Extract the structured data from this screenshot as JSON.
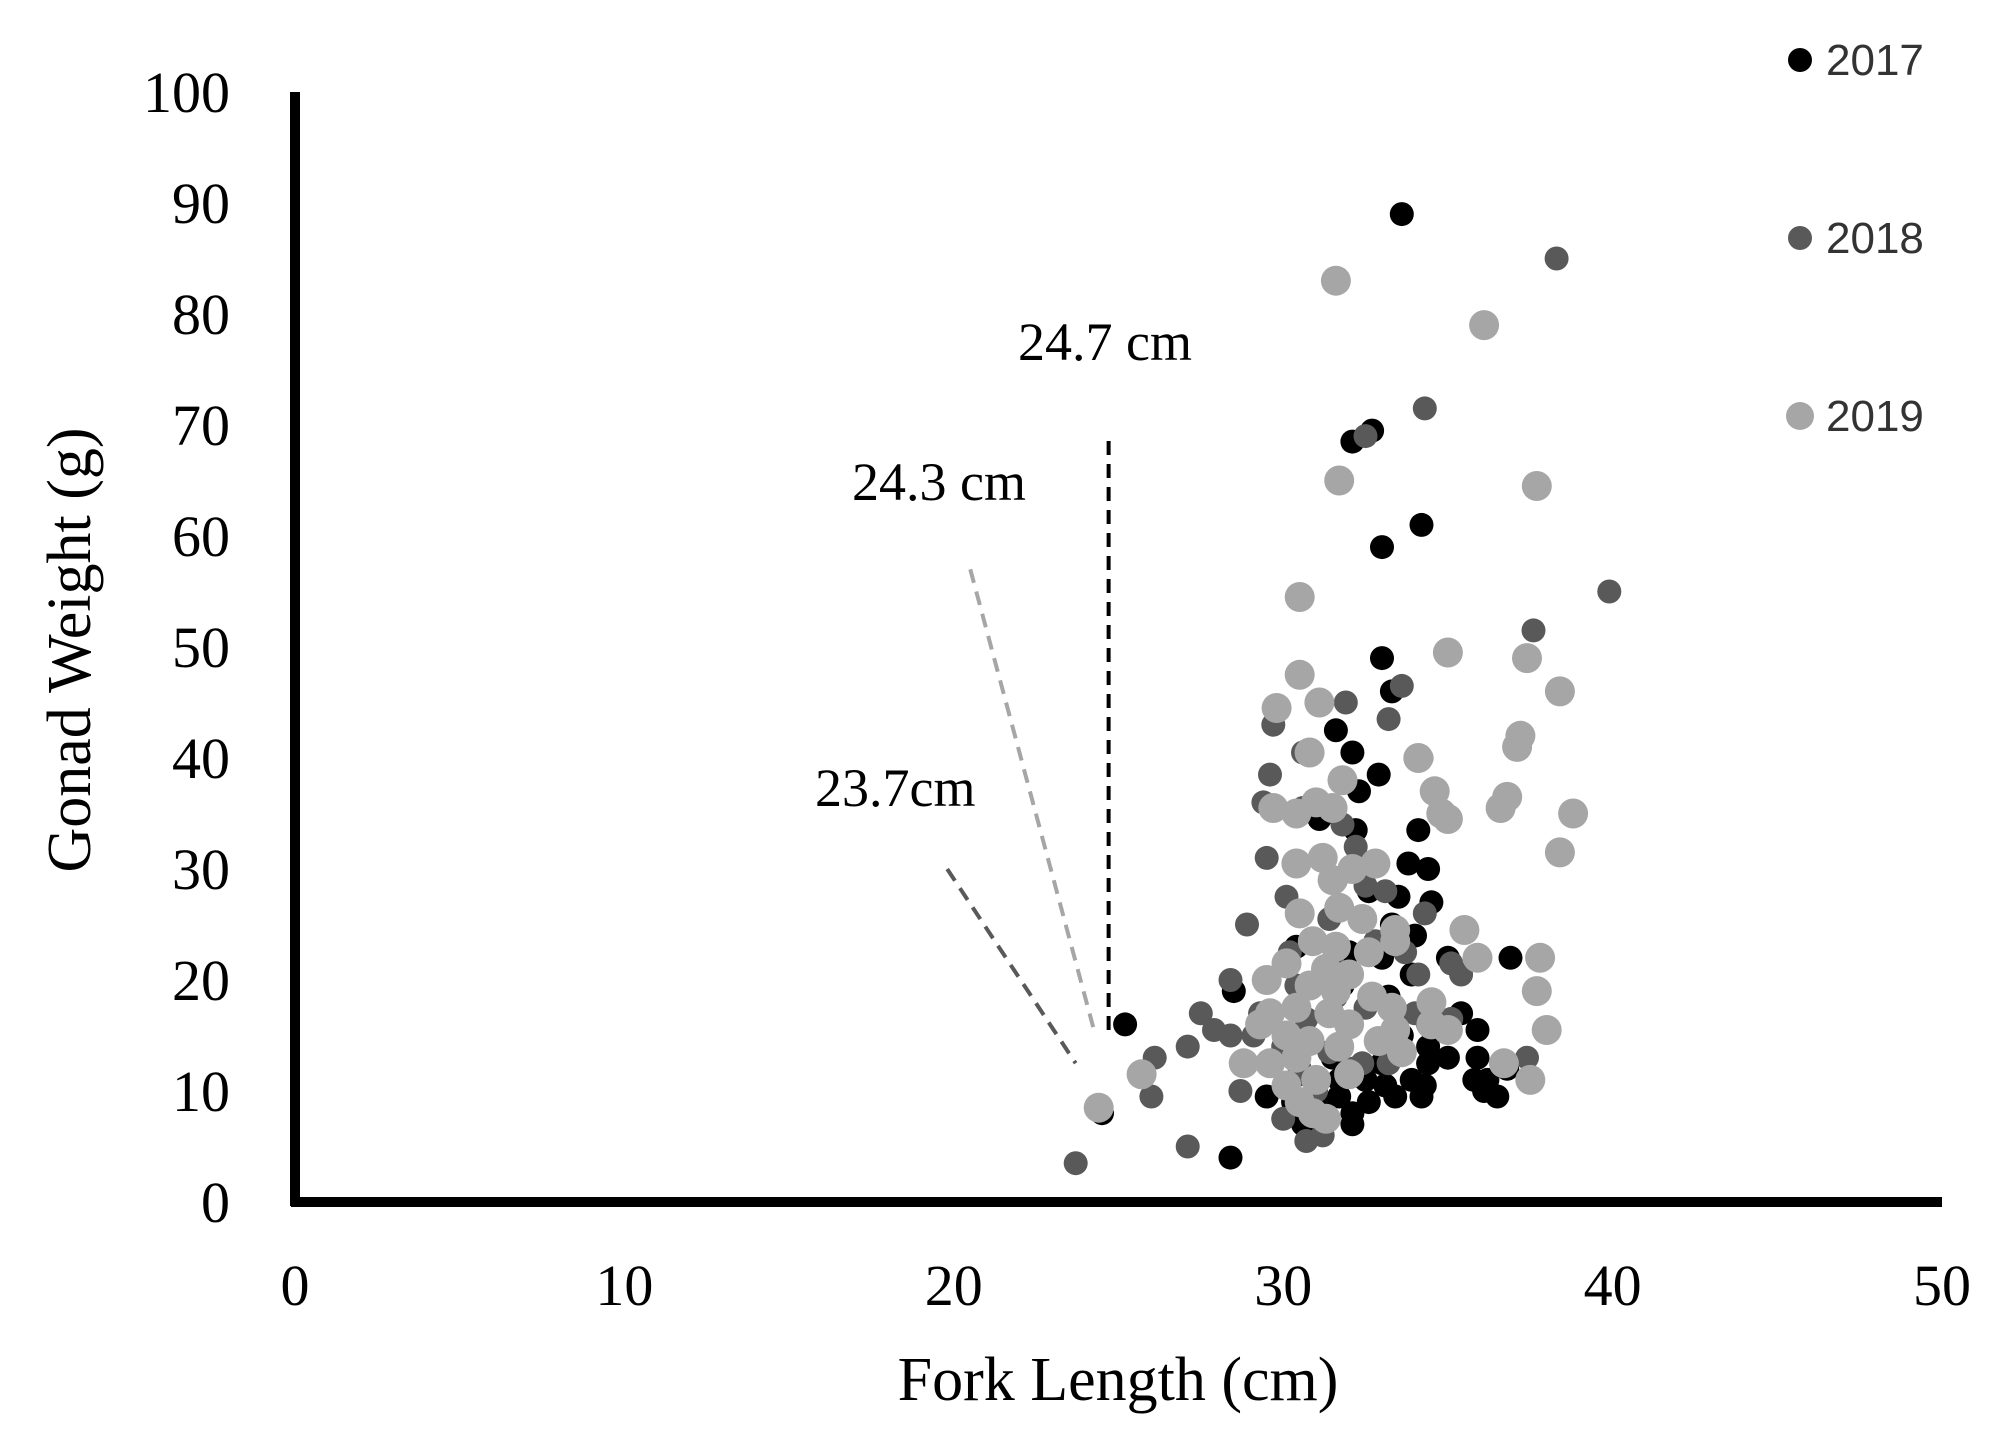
{
  "chart_data": {
    "type": "scatter",
    "xlabel": "Fork Length (cm)",
    "ylabel": "Gonad Weight (g)",
    "xlim": [
      0,
      50
    ],
    "ylim": [
      0,
      100
    ],
    "x_ticks": [
      0,
      10,
      20,
      30,
      40,
      50
    ],
    "y_ticks": [
      0,
      10,
      20,
      30,
      40,
      50,
      60,
      70,
      80,
      90,
      100
    ],
    "grid": false,
    "legend_position": "top-right",
    "colors": {
      "axis": "#000000",
      "2017": "#000000",
      "2018": "#595959",
      "2019": "#a6a6a6"
    },
    "annotations": [
      {
        "text": "24.7 cm",
        "line": {
          "x": [
            24.7,
            24.7
          ],
          "y": [
            15.5,
            69
          ],
          "color": "#000000"
        }
      },
      {
        "text": "24.3 cm",
        "line": {
          "x": [
            20.5,
            24.3
          ],
          "y": [
            57,
            15
          ],
          "color": "#a6a6a6"
        }
      },
      {
        "text": "23.7cm",
        "line": {
          "x": [
            19.8,
            23.7
          ],
          "y": [
            30,
            12.5
          ],
          "color": "#595959"
        }
      }
    ],
    "series": [
      {
        "name": "2017",
        "points": [
          [
            33.6,
            89
          ],
          [
            32.7,
            69.5
          ],
          [
            32.1,
            68.5
          ],
          [
            34.2,
            61
          ],
          [
            33.0,
            59
          ],
          [
            33.0,
            49
          ],
          [
            33.3,
            46
          ],
          [
            31.6,
            42.5
          ],
          [
            32.1,
            40.5
          ],
          [
            32.3,
            37
          ],
          [
            32.9,
            38.5
          ],
          [
            31.1,
            34.5
          ],
          [
            32.2,
            33.5
          ],
          [
            34.1,
            33.5
          ],
          [
            33.8,
            30.5
          ],
          [
            34.4,
            30
          ],
          [
            32.6,
            28
          ],
          [
            33.5,
            27.5
          ],
          [
            34.5,
            27
          ],
          [
            33.3,
            25
          ],
          [
            34.0,
            24
          ],
          [
            30.4,
            23
          ],
          [
            32.0,
            22.5
          ],
          [
            33.0,
            22
          ],
          [
            33.9,
            20.5
          ],
          [
            31.8,
            19.5
          ],
          [
            33.2,
            18.5
          ],
          [
            35.0,
            22
          ],
          [
            36.9,
            22
          ],
          [
            28.5,
            19
          ],
          [
            25.2,
            16
          ],
          [
            34.4,
            16
          ],
          [
            35.4,
            17
          ],
          [
            35.9,
            15.5
          ],
          [
            33.6,
            15
          ],
          [
            32.9,
            14.5
          ],
          [
            34.4,
            14
          ],
          [
            31.5,
            13
          ],
          [
            33.0,
            12.5
          ],
          [
            34.4,
            12.5
          ],
          [
            35.0,
            13
          ],
          [
            35.9,
            13
          ],
          [
            36.2,
            11
          ],
          [
            36.8,
            12
          ],
          [
            30.5,
            11.5
          ],
          [
            31.7,
            11
          ],
          [
            32.5,
            11
          ],
          [
            33.1,
            10.5
          ],
          [
            33.9,
            11
          ],
          [
            34.3,
            10.5
          ],
          [
            35.8,
            11
          ],
          [
            36.1,
            10
          ],
          [
            36.5,
            9.5
          ],
          [
            29.5,
            9.5
          ],
          [
            30.3,
            9
          ],
          [
            31.1,
            9
          ],
          [
            31.7,
            9.5
          ],
          [
            32.6,
            9
          ],
          [
            33.4,
            9.5
          ],
          [
            34.2,
            9.5
          ],
          [
            32.1,
            8
          ],
          [
            30.6,
            7
          ],
          [
            32.1,
            7
          ],
          [
            24.5,
            8
          ],
          [
            28.4,
            4
          ]
        ]
      },
      {
        "name": "2018",
        "points": [
          [
            38.3,
            85
          ],
          [
            34.3,
            71.5
          ],
          [
            32.5,
            69
          ],
          [
            39.9,
            55
          ],
          [
            37.6,
            51.5
          ],
          [
            33.6,
            46.5
          ],
          [
            31.9,
            45
          ],
          [
            33.2,
            43.5
          ],
          [
            29.7,
            43
          ],
          [
            30.6,
            40.5
          ],
          [
            29.6,
            38.5
          ],
          [
            34.2,
            40
          ],
          [
            30.6,
            35.5
          ],
          [
            29.4,
            36
          ],
          [
            31.8,
            34
          ],
          [
            32.2,
            32
          ],
          [
            29.5,
            31
          ],
          [
            31.6,
            29
          ],
          [
            32.5,
            28.5
          ],
          [
            33.1,
            28
          ],
          [
            34.3,
            26
          ],
          [
            30.1,
            27.5
          ],
          [
            31.4,
            25.5
          ],
          [
            28.9,
            25
          ],
          [
            32.8,
            23.5
          ],
          [
            30.2,
            22.5
          ],
          [
            31.5,
            21.5
          ],
          [
            33.7,
            22.5
          ],
          [
            35.1,
            21.5
          ],
          [
            34.1,
            20.5
          ],
          [
            35.4,
            20.5
          ],
          [
            28.4,
            20
          ],
          [
            30.4,
            19.5
          ],
          [
            31.6,
            18.5
          ],
          [
            32.5,
            17.5
          ],
          [
            34.0,
            17
          ],
          [
            35.1,
            16.5
          ],
          [
            29.3,
            17
          ],
          [
            30.7,
            16.5
          ],
          [
            27.5,
            17
          ],
          [
            27.9,
            15.5
          ],
          [
            28.4,
            15
          ],
          [
            29.1,
            15
          ],
          [
            27.1,
            14
          ],
          [
            30.0,
            14
          ],
          [
            31.4,
            13.5
          ],
          [
            32.4,
            12.5
          ],
          [
            30.5,
            12
          ],
          [
            33.2,
            12.5
          ],
          [
            37.4,
            13
          ],
          [
            26.1,
            13
          ],
          [
            28.7,
            10
          ],
          [
            31.0,
            10
          ],
          [
            32.1,
            12
          ],
          [
            26.0,
            9.5
          ],
          [
            30.0,
            7.5
          ],
          [
            31.2,
            6
          ],
          [
            30.7,
            5.5
          ],
          [
            27.1,
            5
          ],
          [
            23.7,
            3.5
          ]
        ]
      },
      {
        "name": "2019",
        "points": [
          [
            31.6,
            83
          ],
          [
            36.1,
            79
          ],
          [
            31.7,
            65
          ],
          [
            37.7,
            64.5
          ],
          [
            30.5,
            54.5
          ],
          [
            35.0,
            49.5
          ],
          [
            37.4,
            49
          ],
          [
            38.4,
            46
          ],
          [
            30.5,
            47.5
          ],
          [
            29.8,
            44.5
          ],
          [
            31.1,
            45
          ],
          [
            30.8,
            40.5
          ],
          [
            31.8,
            38
          ],
          [
            34.1,
            40
          ],
          [
            37.2,
            42
          ],
          [
            37.1,
            41
          ],
          [
            34.6,
            37
          ],
          [
            29.7,
            35.5
          ],
          [
            30.4,
            35
          ],
          [
            31.0,
            36
          ],
          [
            31.5,
            35.5
          ],
          [
            34.8,
            35
          ],
          [
            35.0,
            34.5
          ],
          [
            36.8,
            36.5
          ],
          [
            36.6,
            35.5
          ],
          [
            38.8,
            35
          ],
          [
            30.4,
            30.5
          ],
          [
            31.2,
            31
          ],
          [
            32.1,
            30
          ],
          [
            32.8,
            30.5
          ],
          [
            31.5,
            29
          ],
          [
            38.4,
            31.5
          ],
          [
            30.5,
            26
          ],
          [
            31.7,
            26.5
          ],
          [
            32.4,
            25.5
          ],
          [
            33.4,
            24.5
          ],
          [
            30.9,
            23.5
          ],
          [
            31.6,
            23
          ],
          [
            32.6,
            22.5
          ],
          [
            33.4,
            23.5
          ],
          [
            35.5,
            24.5
          ],
          [
            35.9,
            22
          ],
          [
            37.8,
            22
          ],
          [
            30.1,
            21.5
          ],
          [
            31.3,
            21
          ],
          [
            32.0,
            20.5
          ],
          [
            29.5,
            20
          ],
          [
            30.8,
            19.5
          ],
          [
            31.6,
            19
          ],
          [
            32.7,
            18.5
          ],
          [
            33.3,
            17.5
          ],
          [
            34.5,
            18
          ],
          [
            37.7,
            19
          ],
          [
            29.6,
            17
          ],
          [
            30.4,
            17.5
          ],
          [
            31.4,
            17
          ],
          [
            32.0,
            16
          ],
          [
            33.4,
            15.5
          ],
          [
            34.5,
            16
          ],
          [
            35.0,
            15.5
          ],
          [
            38.0,
            15.5
          ],
          [
            29.3,
            16
          ],
          [
            30.1,
            15
          ],
          [
            30.8,
            14.5
          ],
          [
            31.7,
            14
          ],
          [
            32.9,
            14.5
          ],
          [
            28.8,
            12.5
          ],
          [
            29.6,
            12.5
          ],
          [
            30.4,
            13
          ],
          [
            33.6,
            13.5
          ],
          [
            36.7,
            12.5
          ],
          [
            37.5,
            11
          ],
          [
            30.1,
            10.5
          ],
          [
            31.0,
            11
          ],
          [
            32.0,
            11.5
          ],
          [
            30.5,
            9
          ],
          [
            30.9,
            8
          ],
          [
            31.3,
            7.5
          ],
          [
            25.7,
            11.5
          ],
          [
            24.4,
            8.5
          ]
        ]
      }
    ]
  }
}
